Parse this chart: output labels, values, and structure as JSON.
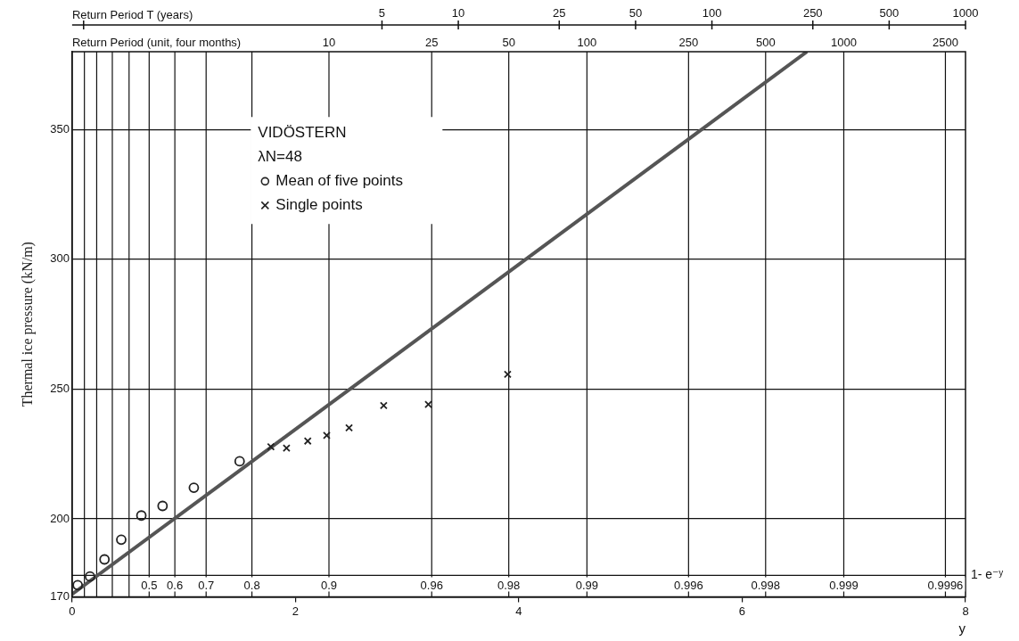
{
  "chart_data": {
    "type": "scatter",
    "xlabel": "y",
    "ylabel": "Thermal ice pressure (kN/m)",
    "x2label": "Return Period T (years)",
    "xlim": [
      0,
      8
    ],
    "xticks": [
      0,
      2,
      4,
      6,
      8
    ],
    "x2lim": [
      0.333,
      1000
    ],
    "x2ticks": [
      {
        "value": 0.333,
        "label": null
      },
      5,
      10,
      25,
      50,
      100,
      250,
      500,
      1000
    ],
    "log": "x2",
    "ylim": [
      170,
      380
    ],
    "yticks": [
      170,
      200,
      250,
      300,
      350
    ],
    "grid": "y",
    "legend": "top left",
    "annotations": [
      "VIDÖSTERN",
      "λN=48",
      "1- e⁻ʸ",
      "Return Period (unit, four months)",
      {
        "text": "10",
        "x": 2.3,
        "y": 380
      },
      {
        "text": "25",
        "x": 3.22,
        "y": 380
      },
      {
        "text": "50",
        "x": 3.91,
        "y": 380
      },
      {
        "text": "100",
        "x": 4.61,
        "y": 380
      },
      {
        "text": "250",
        "x": 5.52,
        "y": 380
      },
      {
        "text": "500",
        "x": 6.21,
        "y": 380
      },
      {
        "text": "1000",
        "x": 6.91,
        "y": 380
      },
      {
        "text": "2500",
        "x": 7.82,
        "y": 380
      },
      {
        "text": "0.5",
        "x": 0.69,
        "y": 171
      },
      {
        "text": "0.6",
        "x": 0.92,
        "y": 171
      },
      {
        "text": "0.7",
        "x": 1.2,
        "y": 171
      },
      {
        "text": "0.8",
        "x": 1.61,
        "y": 171
      },
      {
        "text": "0.9",
        "x": 2.3,
        "y": 171
      },
      {
        "text": "0.96",
        "x": 3.22,
        "y": 171
      },
      {
        "text": "0.98",
        "x": 3.91,
        "y": 171
      },
      {
        "text": "0.99",
        "x": 4.61,
        "y": 171
      },
      {
        "text": "0.996",
        "x": 5.52,
        "y": 171
      },
      {
        "text": "0.998",
        "x": 6.21,
        "y": 171
      },
      {
        "text": "0.999",
        "x": 6.91,
        "y": 171
      },
      {
        "text": "0.9996",
        "x": 7.82,
        "y": 171
      }
    ],
    "ref_lines": [
      {
        "axis": "x",
        "value": 0.11
      },
      {
        "axis": "x",
        "value": 0.22
      },
      {
        "axis": "x",
        "value": 0.36
      },
      {
        "axis": "x",
        "value": 0.51
      },
      {
        "axis": "x",
        "value": 0.69
      },
      {
        "axis": "x",
        "value": 0.92
      },
      {
        "axis": "x",
        "value": 1.2
      },
      {
        "axis": "x",
        "value": 1.61
      },
      {
        "axis": "x",
        "value": 2.3
      },
      {
        "axis": "x",
        "value": 3.22
      },
      {
        "axis": "x",
        "value": 3.91
      },
      {
        "axis": "x",
        "value": 4.61
      },
      {
        "axis": "x",
        "value": 5.52
      },
      {
        "axis": "x",
        "value": 6.21
      },
      {
        "axis": "x",
        "value": 6.91
      },
      {
        "axis": "x",
        "value": 7.82
      }
    ],
    "series": [
      {
        "name": "Mean of five points",
        "color": "#222222",
        "marker": "circle",
        "x": [
          0.05,
          0.16,
          0.29,
          0.44,
          0.62,
          0.81,
          1.09,
          1.5
        ],
        "values": [
          174.5,
          177.8,
          184.4,
          192,
          201.3,
          205,
          212,
          222.2
        ]
      },
      {
        "name": "Single points",
        "color": "#222222",
        "marker": "cross",
        "x": [
          1.78,
          1.92,
          2.11,
          2.28,
          2.48,
          2.79,
          3.19,
          3.9
        ],
        "values": [
          227.8,
          227.3,
          230,
          232.2,
          235.1,
          243.7,
          244.1,
          255.7
        ]
      },
      {
        "type": "line",
        "color": "#555555",
        "marker": "none",
        "x": [
          0,
          6.58
        ],
        "values": [
          171,
          380
        ]
      }
    ]
  }
}
